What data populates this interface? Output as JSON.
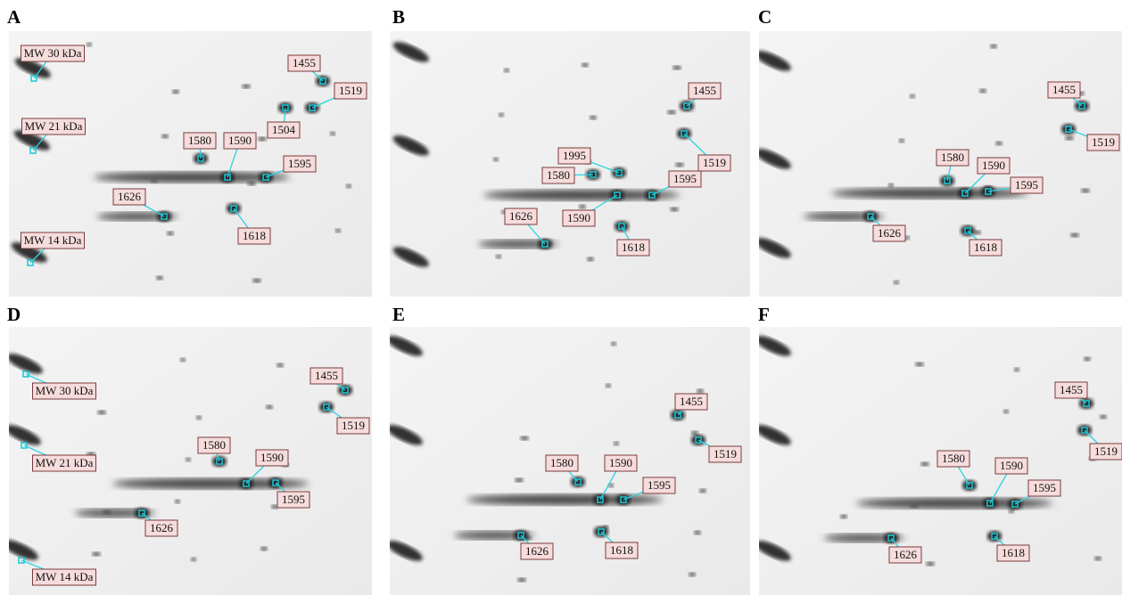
{
  "panels": [
    {
      "letter": "A",
      "labels": [
        "MW 30 kDa",
        "1455",
        "1519",
        "MW 21 kDa",
        "1504",
        "1580",
        "1590",
        "1595",
        "1626",
        "1618",
        "MW 14 kDa"
      ]
    },
    {
      "letter": "B",
      "labels": [
        "1455",
        "1995",
        "1580",
        "1519",
        "1595",
        "1590",
        "1626",
        "1618"
      ]
    },
    {
      "letter": "C",
      "labels": [
        "1455",
        "1580",
        "1590",
        "1519",
        "1595",
        "1626",
        "1618"
      ]
    },
    {
      "letter": "D",
      "labels": [
        "MW 30 kDa",
        "1455",
        "1519",
        "1580",
        "1590",
        "MW 21 kDa",
        "1595",
        "1626",
        "MW 14 kDa"
      ]
    },
    {
      "letter": "E",
      "labels": [
        "1455",
        "1580",
        "1590",
        "1519",
        "1595",
        "1626",
        "1618"
      ]
    },
    {
      "letter": "F",
      "labels": [
        "1455",
        "1580",
        "1590",
        "1519",
        "1595",
        "1626",
        "1618"
      ]
    }
  ]
}
